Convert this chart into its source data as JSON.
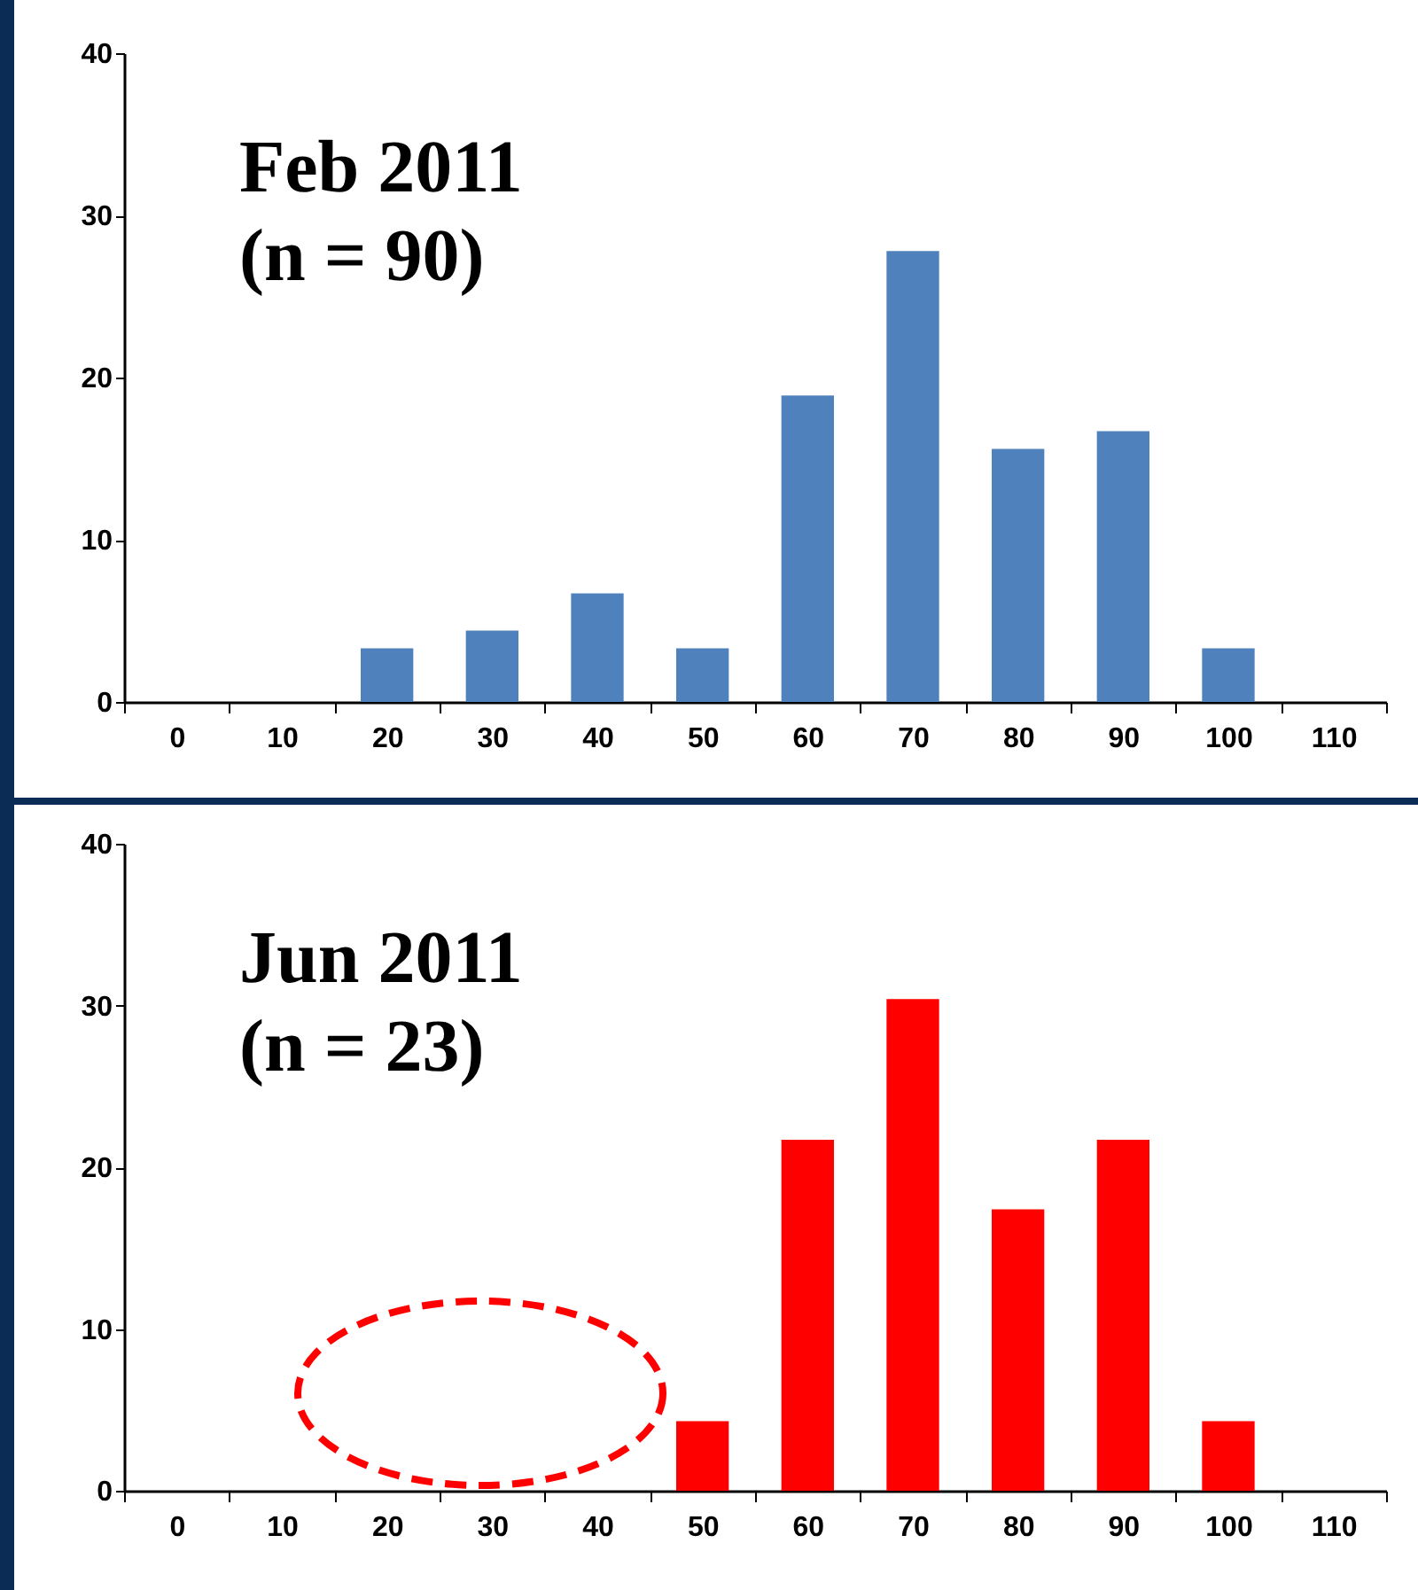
{
  "chart_data": [
    {
      "type": "bar",
      "title": "Feb 2011",
      "subtitle": "(n = 90)",
      "categories": [
        "0",
        "10",
        "20",
        "30",
        "40",
        "50",
        "60",
        "70",
        "80",
        "90",
        "100",
        "110"
      ],
      "series": [
        {
          "color": "#4f81bd",
          "values": [
            0,
            0,
            3.3,
            4.4,
            6.7,
            3.3,
            18.9,
            27.8,
            15.6,
            16.7,
            3.3,
            0
          ]
        }
      ],
      "ylim": [
        0,
        40
      ],
      "yticks": [
        0,
        10,
        20,
        30,
        40
      ],
      "grid": false,
      "legend": false
    },
    {
      "type": "bar",
      "title": "Jun 2011",
      "subtitle": "(n = 23)",
      "categories": [
        "0",
        "10",
        "20",
        "30",
        "40",
        "50",
        "60",
        "70",
        "80",
        "90",
        "100",
        "110"
      ],
      "series": [
        {
          "color": "#ff0000",
          "values": [
            0,
            0,
            0,
            0,
            0,
            4.3,
            21.7,
            30.4,
            17.4,
            21.7,
            4.3,
            0
          ]
        }
      ],
      "ylim": [
        0,
        40
      ],
      "yticks": [
        0,
        10,
        20,
        30,
        40
      ],
      "grid": false,
      "legend": false
    }
  ]
}
